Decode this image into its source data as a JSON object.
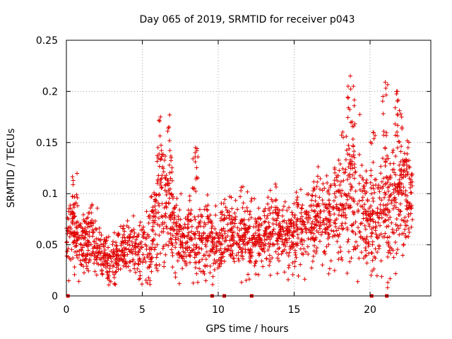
{
  "chart_data": {
    "type": "scatter",
    "title": "Day 065 of 2019, SRMTID for receiver p043",
    "xlabel": "GPS time / hours",
    "ylabel": "SRMTID / TECUs",
    "xlim": [
      0,
      24
    ],
    "ylim": [
      0,
      0.25
    ],
    "grid": true,
    "marker": "+",
    "color": "#e00000",
    "x_ticks": [
      0,
      5,
      10,
      15,
      20
    ],
    "x_tick_labels": [
      "0",
      "5",
      "10",
      "15",
      "20"
    ],
    "y_ticks": [
      0,
      0.05,
      0.1,
      0.15,
      0.2,
      0.25
    ],
    "y_tick_labels": [
      "0",
      "0.05",
      "0.1",
      "0.15",
      "0.2",
      "0.25"
    ],
    "zero_markers_x": [
      0.1,
      9.6,
      10.4,
      12.2,
      20.1,
      21.1
    ],
    "approx_envelope": {
      "description": "Dense scatter of SRMTID values; estimated per-half-hour median and spread",
      "hours": [
        0,
        0.5,
        1,
        1.5,
        2,
        2.5,
        3,
        3.5,
        4,
        4.5,
        5,
        5.5,
        6,
        6.5,
        7,
        7.5,
        8,
        8.5,
        9,
        9.5,
        10,
        10.5,
        11,
        11.5,
        12,
        12.5,
        13,
        13.5,
        14,
        14.5,
        15,
        15.5,
        16,
        16.5,
        17,
        17.5,
        18,
        18.5,
        19,
        19.5,
        20,
        20.5,
        21,
        21.5,
        22,
        22.5,
        22.8
      ],
      "median": [
        0.055,
        0.07,
        0.05,
        0.06,
        0.05,
        0.04,
        0.035,
        0.04,
        0.045,
        0.05,
        0.045,
        0.05,
        0.08,
        0.085,
        0.07,
        0.06,
        0.05,
        0.055,
        0.05,
        0.06,
        0.05,
        0.065,
        0.06,
        0.06,
        0.06,
        0.055,
        0.06,
        0.065,
        0.06,
        0.06,
        0.06,
        0.065,
        0.07,
        0.075,
        0.08,
        0.085,
        0.08,
        0.1,
        0.09,
        0.085,
        0.06,
        0.08,
        0.08,
        0.09,
        0.1,
        0.1,
        0.1
      ],
      "spread": [
        0.02,
        0.03,
        0.02,
        0.025,
        0.02,
        0.015,
        0.02,
        0.015,
        0.02,
        0.02,
        0.02,
        0.025,
        0.045,
        0.045,
        0.03,
        0.025,
        0.025,
        0.025,
        0.02,
        0.025,
        0.02,
        0.025,
        0.02,
        0.025,
        0.025,
        0.02,
        0.02,
        0.025,
        0.02,
        0.02,
        0.025,
        0.025,
        0.025,
        0.03,
        0.03,
        0.03,
        0.03,
        0.05,
        0.04,
        0.04,
        0.03,
        0.035,
        0.04,
        0.04,
        0.04,
        0.035,
        0.03
      ]
    },
    "peaks": [
      {
        "x": 6.2,
        "y": 0.175
      },
      {
        "x": 6.8,
        "y": 0.177
      },
      {
        "x": 8.5,
        "y": 0.145
      },
      {
        "x": 18.7,
        "y": 0.215
      },
      {
        "x": 18.9,
        "y": 0.205
      },
      {
        "x": 20.2,
        "y": 0.16
      },
      {
        "x": 21.0,
        "y": 0.209
      },
      {
        "x": 21.8,
        "y": 0.2
      },
      {
        "x": 22.1,
        "y": 0.165
      }
    ]
  }
}
